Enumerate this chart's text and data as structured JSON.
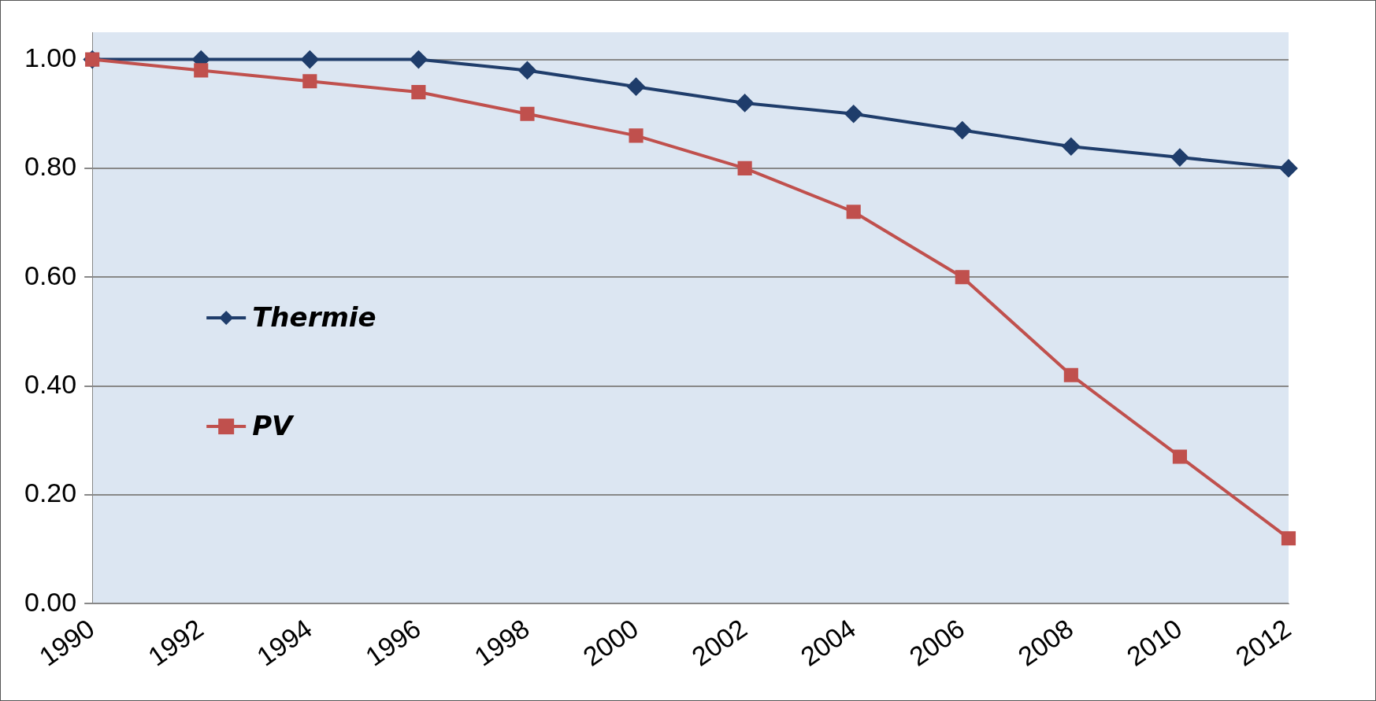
{
  "chart_data": {
    "type": "line",
    "categories": [
      "1990",
      "1992",
      "1994",
      "1996",
      "1998",
      "2000",
      "2002",
      "2004",
      "2006",
      "2008",
      "2010",
      "2012"
    ],
    "series": [
      {
        "name": "Thermie",
        "color": "#1f3d6b",
        "marker": "diamond",
        "values": [
          1.0,
          1.0,
          1.0,
          1.0,
          0.98,
          0.95,
          0.92,
          0.9,
          0.87,
          0.84,
          0.82,
          0.8
        ]
      },
      {
        "name": "PV",
        "color": "#c0504d",
        "marker": "square",
        "values": [
          1.0,
          0.98,
          0.96,
          0.94,
          0.9,
          0.86,
          0.8,
          0.72,
          0.6,
          0.42,
          0.27,
          0.12
        ]
      }
    ],
    "ylim": [
      0,
      1.05
    ],
    "yticks": [
      {
        "value": 0,
        "label": "0.00"
      },
      {
        "value": 0.2,
        "label": "0.20"
      },
      {
        "value": 0.4,
        "label": "0.40"
      },
      {
        "value": 0.6,
        "label": "0.60"
      },
      {
        "value": 0.8,
        "label": "0.80"
      },
      {
        "value": 1,
        "label": "1.00"
      }
    ],
    "grid": "y",
    "legend": "left"
  }
}
